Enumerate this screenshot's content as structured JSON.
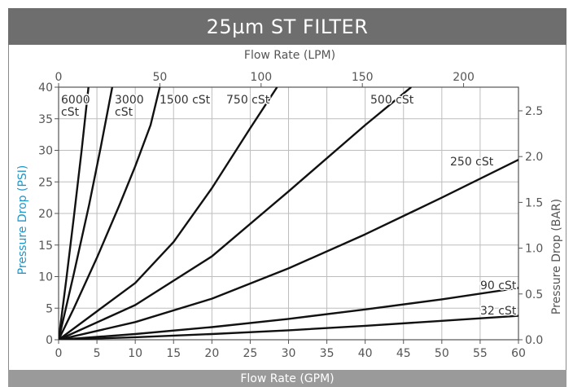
{
  "title": "25µm ST FILTER",
  "colors": {
    "title_bg": "#6e6e6e",
    "footer_bg": "#9a9a9a",
    "axis_label_left": "#1f95c8",
    "axis_label_right": "#555555",
    "grid": "#bdbdbd",
    "line": "#111111"
  },
  "chart_data": {
    "type": "line",
    "title": "25µm ST FILTER",
    "xlabel": "Flow Rate (GPM)",
    "ylabel": "Pressure Drop (PSI)",
    "x2label": "Flow Rate (LPM)",
    "y2label": "Pressure Drop (BAR)",
    "xlim": [
      0,
      60
    ],
    "ylim": [
      0,
      40
    ],
    "x2lim": [
      0,
      227.1
    ],
    "y2lim": [
      0,
      2.758
    ],
    "xticks": [
      "0",
      "5",
      "10",
      "15",
      "20",
      "25",
      "30",
      "35",
      "40",
      "45",
      "50",
      "55",
      "60"
    ],
    "yticks": [
      "0",
      "5",
      "10",
      "15",
      "20",
      "25",
      "30",
      "35",
      "40"
    ],
    "x2ticks": [
      {
        "label": "0",
        "value": 0
      },
      {
        "label": "50",
        "value": 50
      },
      {
        "label": "100",
        "value": 100
      },
      {
        "label": "150",
        "value": 150
      },
      {
        "label": "200",
        "value": 200
      }
    ],
    "y2ticks": [
      {
        "label": "0.0",
        "value": 0.0
      },
      {
        "label": "0.5",
        "value": 0.5
      },
      {
        "label": "1.0",
        "value": 1.0
      },
      {
        "label": "1.5",
        "value": 1.5
      },
      {
        "label": "2.0",
        "value": 2.0
      },
      {
        "label": "2.5",
        "value": 2.5
      }
    ],
    "grid": true,
    "series": [
      {
        "name": "6000 cSt",
        "label_lines": [
          "6000",
          "cSt"
        ],
        "points": [
          [
            0,
            0
          ],
          [
            1,
            9.5
          ],
          [
            2,
            19.5
          ],
          [
            3,
            30
          ],
          [
            3.9,
            40
          ]
        ]
      },
      {
        "name": "3000 cSt",
        "label_lines": [
          "3000",
          "cSt"
        ],
        "points": [
          [
            0,
            0
          ],
          [
            2,
            10.5
          ],
          [
            4,
            21.5
          ],
          [
            5.5,
            30.5
          ],
          [
            7,
            40
          ]
        ]
      },
      {
        "name": "1500 cSt",
        "label_lines": [
          "1500 cSt"
        ],
        "points": [
          [
            0,
            0
          ],
          [
            2,
            5
          ],
          [
            5,
            13
          ],
          [
            8,
            21.5
          ],
          [
            10,
            27.5
          ],
          [
            12,
            34
          ],
          [
            13.2,
            40
          ]
        ]
      },
      {
        "name": "750 cSt",
        "label_lines": [
          "750 cSt"
        ],
        "points": [
          [
            0,
            0
          ],
          [
            5,
            4.5
          ],
          [
            10,
            9
          ],
          [
            15,
            15.5
          ],
          [
            20,
            24
          ],
          [
            25,
            33.5
          ],
          [
            28.5,
            40
          ]
        ]
      },
      {
        "name": "500 cSt",
        "label_lines": [
          "500 cSt"
        ],
        "points": [
          [
            0,
            0
          ],
          [
            10,
            5.5
          ],
          [
            20,
            13.2
          ],
          [
            30,
            23.5
          ],
          [
            40,
            34
          ],
          [
            46,
            40
          ]
        ]
      },
      {
        "name": "250 cSt",
        "label_lines": [
          "250 cSt"
        ],
        "points": [
          [
            0,
            0
          ],
          [
            10,
            2.8
          ],
          [
            20,
            6.5
          ],
          [
            30,
            11.3
          ],
          [
            40,
            16.7
          ],
          [
            50,
            22.5
          ],
          [
            60,
            28.5
          ]
        ]
      },
      {
        "name": "90 cSt",
        "label_lines": [
          "90 cSt"
        ],
        "points": [
          [
            0,
            0
          ],
          [
            10,
            0.9
          ],
          [
            20,
            2
          ],
          [
            30,
            3.3
          ],
          [
            40,
            4.8
          ],
          [
            50,
            6.4
          ],
          [
            60,
            8.2
          ]
        ]
      },
      {
        "name": "32 cSt",
        "label_lines": [
          "32 cSt"
        ],
        "points": [
          [
            0,
            0
          ],
          [
            10,
            0.4
          ],
          [
            20,
            0.9
          ],
          [
            30,
            1.5
          ],
          [
            40,
            2.2
          ],
          [
            50,
            3
          ],
          [
            60,
            3.8
          ]
        ]
      }
    ]
  }
}
